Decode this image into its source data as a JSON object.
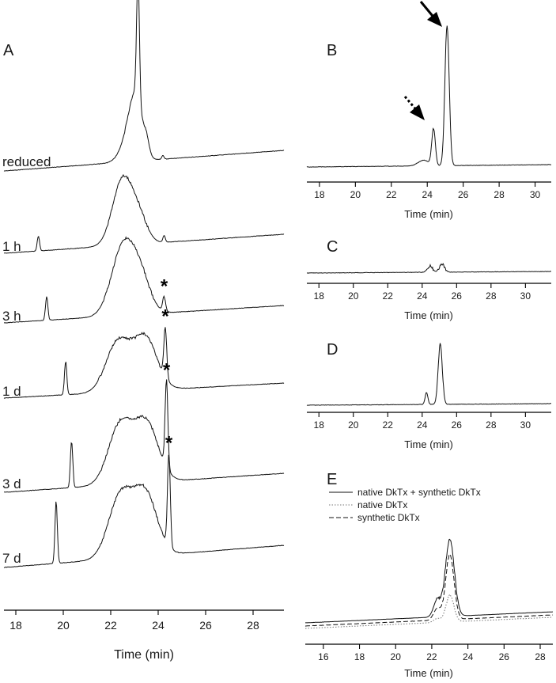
{
  "chart_data": [
    {
      "panel": "A",
      "type": "line",
      "xlabel": "Time (min)",
      "xlim": [
        17.5,
        29.3
      ],
      "xticks": [
        18,
        20,
        22,
        24,
        26,
        28
      ],
      "series": [
        {
          "name": "reduced",
          "peaks": [
            {
              "x": 23.15,
              "height": 1.0,
              "width": 0.06
            },
            {
              "x": 23.05,
              "height": 0.42,
              "width": 0.28
            },
            {
              "x": 22.75,
              "height": 0.15,
              "width": 0.35
            },
            {
              "x": 23.5,
              "height": 0.1,
              "width": 0.12
            },
            {
              "x": 24.2,
              "height": 0.03,
              "width": 0.05
            }
          ]
        },
        {
          "name": "1 h",
          "peaks": [
            {
              "x": 18.95,
              "height": 0.22,
              "width": 0.05
            },
            {
              "x": 22.5,
              "height": 0.98,
              "width": 0.42
            },
            {
              "x": 23.2,
              "height": 0.35,
              "width": 0.35
            },
            {
              "x": 24.25,
              "height": 0.1,
              "width": 0.05
            }
          ]
        },
        {
          "name": "3 h",
          "peaks": [
            {
              "x": 19.3,
              "height": 0.36,
              "width": 0.05
            },
            {
              "x": 22.55,
              "height": 1.05,
              "width": 0.5
            },
            {
              "x": 23.3,
              "height": 0.42,
              "width": 0.4
            },
            {
              "x": 24.25,
              "height": 0.22,
              "width": 0.06
            }
          ]
        },
        {
          "name": "1 d",
          "peaks": [
            {
              "x": 20.1,
              "height": 0.54,
              "width": 0.05
            },
            {
              "x": 22.3,
              "height": 0.8,
              "width": 0.5
            },
            {
              "x": 23.45,
              "height": 0.85,
              "width": 0.5
            },
            {
              "x": 24.3,
              "height": 0.82,
              "width": 0.06
            }
          ]
        },
        {
          "name": "3 d",
          "peaks": [
            {
              "x": 20.35,
              "height": 0.66,
              "width": 0.05
            },
            {
              "x": 22.4,
              "height": 0.85,
              "width": 0.5
            },
            {
              "x": 23.5,
              "height": 0.85,
              "width": 0.5
            },
            {
              "x": 24.35,
              "height": 1.25,
              "width": 0.06
            }
          ]
        },
        {
          "name": "7 d",
          "peaks": [
            {
              "x": 19.7,
              "height": 0.82,
              "width": 0.05
            },
            {
              "x": 22.4,
              "height": 0.8,
              "width": 0.5
            },
            {
              "x": 23.45,
              "height": 0.82,
              "width": 0.5
            },
            {
              "x": 24.45,
              "height": 1.22,
              "width": 0.06
            }
          ]
        }
      ],
      "annotations": [
        {
          "text": "*",
          "series": "3 h",
          "x": 24.25
        },
        {
          "text": "*",
          "series": "1 d",
          "x": 24.3
        },
        {
          "text": "*",
          "series": "3 d",
          "x": 24.35
        },
        {
          "text": "*",
          "series": "7 d",
          "x": 24.45
        }
      ]
    },
    {
      "panel": "B",
      "type": "line",
      "xlabel": "Time (min)",
      "xlim": [
        17.3,
        30.9
      ],
      "xticks": [
        18,
        20,
        22,
        24,
        26,
        28,
        30
      ],
      "peaks": [
        {
          "x": 25.1,
          "height": 1.0,
          "width": 0.12
        },
        {
          "x": 24.35,
          "height": 0.26,
          "width": 0.1
        },
        {
          "x": 23.8,
          "height": 0.04,
          "width": 0.3
        }
      ],
      "arrows": [
        {
          "style": "solid",
          "target_x": 25.1
        },
        {
          "style": "dotted",
          "target_x": 24.35
        }
      ]
    },
    {
      "panel": "C",
      "type": "line",
      "xlabel": "Time (min)",
      "xlim": [
        17.3,
        31.5
      ],
      "xticks": [
        18,
        20,
        22,
        24,
        26,
        28,
        30
      ],
      "peaks": [
        {
          "x": 24.45,
          "height": 0.55,
          "width": 0.15
        },
        {
          "x": 25.15,
          "height": 0.75,
          "width": 0.15
        }
      ]
    },
    {
      "panel": "D",
      "type": "line",
      "xlabel": "Time (min)",
      "xlim": [
        17.3,
        31.5
      ],
      "xticks": [
        18,
        20,
        22,
        24,
        26,
        28,
        30
      ],
      "peaks": [
        {
          "x": 25.05,
          "height": 1.0,
          "width": 0.12
        },
        {
          "x": 24.25,
          "height": 0.2,
          "width": 0.08
        }
      ]
    },
    {
      "panel": "E",
      "type": "line",
      "xlabel": "Time (min)",
      "xlim": [
        15.0,
        28.7
      ],
      "xticks": [
        16,
        18,
        20,
        22,
        24,
        26,
        28
      ],
      "series": [
        {
          "name": "native DkTx + synthetic DkTx",
          "style": "solid",
          "peaks": [
            {
              "x": 23.0,
              "height": 1.0,
              "width": 0.25
            },
            {
              "x": 22.3,
              "height": 0.22,
              "width": 0.2
            }
          ]
        },
        {
          "name": "native DkTx",
          "style": "dotted",
          "peaks": [
            {
              "x": 23.0,
              "height": 0.35,
              "width": 0.22
            },
            {
              "x": 22.3,
              "height": 0.05,
              "width": 0.2
            }
          ]
        },
        {
          "name": "synthetic DkTx",
          "style": "dashed",
          "peaks": [
            {
              "x": 23.0,
              "height": 0.85,
              "width": 0.23
            },
            {
              "x": 22.3,
              "height": 0.15,
              "width": 0.2
            }
          ]
        }
      ]
    }
  ]
}
